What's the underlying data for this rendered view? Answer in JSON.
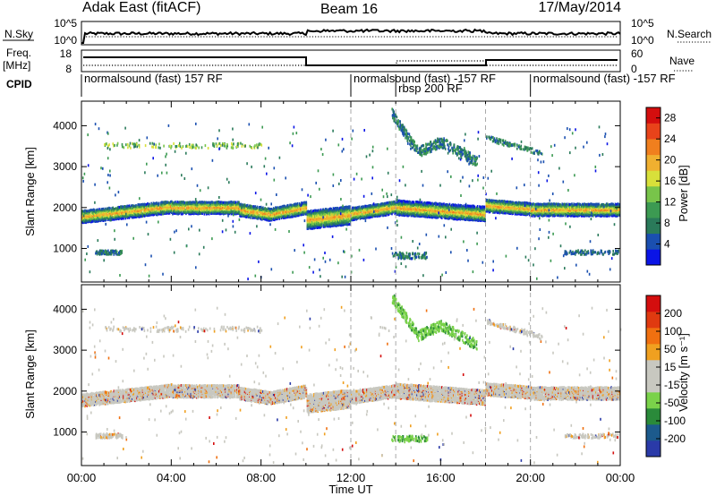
{
  "header": {
    "station": "Adak East (fitACF)",
    "beam": "Beam 16",
    "date": "17/May/2014"
  },
  "top_panels": {
    "nsky_label": "N.Sky",
    "nsky_ticks": [
      "10^5",
      "10^0"
    ],
    "nsearch_label": "N.Search",
    "nsearch_ticks": [
      "10^5",
      "10^0"
    ],
    "freq_label": "Freq.",
    "freq_unit": "[MHz]",
    "freq_ticks": [
      "18",
      "8"
    ],
    "nave_label": "Nave",
    "nave_ticks": [
      "60",
      "0"
    ],
    "cpid_label": "CPID"
  },
  "cpid_segments": [
    {
      "start_h": 0,
      "end_h": 12,
      "label": "normalsound (fast) 157 RF"
    },
    {
      "start_h": 12,
      "end_h": 20,
      "label": "normalsound (fast) -157 RF"
    },
    {
      "start_h": 14,
      "end_h": 18,
      "label": "rbsp 200 RF"
    },
    {
      "start_h": 20,
      "end_h": 24,
      "label": "normalsound (fast) -157 RF"
    }
  ],
  "chart_data": [
    {
      "type": "heatmap",
      "panel": "power",
      "ylabel": "Slant Range [km]",
      "xlabel": "Time UT",
      "x_ticks": [
        "00:00",
        "04:00",
        "08:00",
        "12:00",
        "16:00",
        "20:00",
        "00:00"
      ],
      "xlim_hours": [
        0,
        24
      ],
      "ylim_km": [
        180,
        4600
      ],
      "y_ticks": [
        1000,
        2000,
        3000,
        4000
      ],
      "colorbar": {
        "label": "Power [dB]",
        "ticks": [
          "28",
          "24",
          "20",
          "16",
          "12",
          "8",
          "4"
        ],
        "range": [
          0,
          30
        ],
        "colors": [
          "#0a14e6",
          "#1a4fb0",
          "#2a7a5a",
          "#3c9a52",
          "#78c44a",
          "#d8e03a",
          "#f0b030",
          "#f07f1e",
          "#e8431a",
          "#d40e0e"
        ]
      },
      "features": [
        {
          "name": "main band",
          "start_h": 0,
          "end_h": 24,
          "center_km": [
            1800,
            1900,
            2000,
            2080,
            2000,
            1850,
            1780,
            1900,
            2000,
            2000,
            1900,
            1950,
            2000
          ],
          "intensity_db": 18
        },
        {
          "name": "upper echoes 03:30",
          "start_h": 1.0,
          "end_h": 8.0,
          "center_km": [
            3500
          ],
          "intensity_db": 14
        },
        {
          "name": "high range arc",
          "start_h": 13.8,
          "end_h": 17.5,
          "center_km": [
            4300,
            3800,
            3300,
            3500,
            3200
          ],
          "intensity_db": 8
        }
      ]
    },
    {
      "type": "heatmap",
      "panel": "velocity",
      "ylabel": "Slant Range [km]",
      "xlabel": "Time UT",
      "x_ticks": [
        "00:00",
        "04:00",
        "08:00",
        "12:00",
        "16:00",
        "20:00",
        "00:00"
      ],
      "xlim_hours": [
        0,
        24
      ],
      "ylim_km": [
        180,
        4600
      ],
      "y_ticks": [
        1000,
        2000,
        3000,
        4000
      ],
      "colorbar": {
        "label": "Velocity [m s⁻¹]",
        "ticks": [
          "200",
          "100",
          "50",
          "15",
          "-15",
          "-50",
          "-100",
          "-200"
        ],
        "colors": [
          "#2a3aa8",
          "#1c5a8c",
          "#2a8a3a",
          "#7ad24a",
          "#c8c8c0",
          "#c8c8c0",
          "#f0a020",
          "#f07010",
          "#e03a10",
          "#d40e0e"
        ]
      }
    }
  ]
}
